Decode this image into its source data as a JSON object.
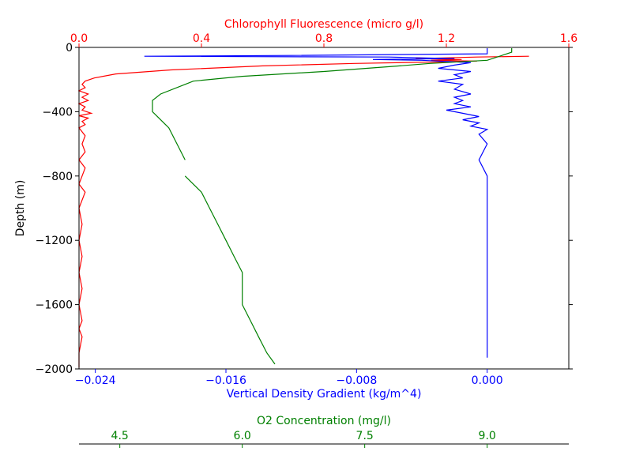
{
  "chart_data": {
    "type": "line",
    "y_axis": {
      "label": "Depth (m)",
      "ylim": [
        -2000,
        0
      ],
      "ticks": [
        0,
        -400,
        -800,
        -1200,
        -1600,
        -2000
      ],
      "tick_labels": [
        "0",
        "−400",
        "−800",
        "−1200",
        "−1600",
        "−2000"
      ]
    },
    "axes": {
      "chlorophyll": {
        "label": "Chlorophyll Fluorescence (micro g/l)",
        "position": "top",
        "color": "#ff0000",
        "xlim": [
          0,
          1.6
        ],
        "ticks": [
          0,
          0.4,
          0.8,
          1.2,
          1.6
        ],
        "tick_labels": [
          "0.0",
          "0.4",
          "0.8",
          "1.2",
          "1.6"
        ]
      },
      "density": {
        "label": "Vertical Density Gradient (kg/m^4)",
        "position": "bottom",
        "color": "#0000ff",
        "xlim": [
          -0.025,
          0.005
        ],
        "ticks": [
          -0.024,
          -0.016,
          -0.008,
          0.0
        ],
        "tick_labels": [
          "−0.024",
          "−0.016",
          "−0.008",
          "0.000"
        ]
      },
      "o2": {
        "label": "O2 Concentration (mg/l)",
        "position": "bottom-offset",
        "color": "#008000",
        "xlim": [
          4.0,
          10.0
        ],
        "ticks": [
          4.5,
          6.0,
          7.5,
          9.0
        ],
        "tick_labels": [
          "4.5",
          "6.0",
          "7.5",
          "9.0"
        ]
      }
    },
    "series": [
      {
        "axis": "chlorophyll",
        "color": "#ff0000",
        "points": [
          [
            1.47,
            -55
          ],
          [
            1.3,
            -60
          ],
          [
            1.1,
            -70
          ],
          [
            1.25,
            -75
          ],
          [
            1.15,
            -80
          ],
          [
            1.3,
            -85
          ],
          [
            1.2,
            -90
          ],
          [
            0.9,
            -100
          ],
          [
            0.6,
            -115
          ],
          [
            0.3,
            -140
          ],
          [
            0.12,
            -165
          ],
          [
            0.05,
            -190
          ],
          [
            0.02,
            -210
          ],
          [
            0.01,
            -230
          ],
          [
            0.02,
            -250
          ],
          [
            0.0,
            -270
          ],
          [
            0.03,
            -290
          ],
          [
            0.01,
            -310
          ],
          [
            0.03,
            -330
          ],
          [
            0.0,
            -350
          ],
          [
            0.02,
            -370
          ],
          [
            0.01,
            -390
          ],
          [
            0.04,
            -410
          ],
          [
            0.0,
            -425
          ],
          [
            0.03,
            -440
          ],
          [
            0.01,
            -460
          ],
          [
            0.02,
            -480
          ],
          [
            0.0,
            -500
          ],
          [
            0.02,
            -550
          ],
          [
            0.01,
            -600
          ],
          [
            0.02,
            -650
          ],
          [
            0.0,
            -700
          ],
          [
            0.02,
            -750
          ],
          [
            0.01,
            -800
          ],
          [
            0.0,
            -850
          ],
          [
            0.02,
            -900
          ],
          [
            0.01,
            -950
          ],
          [
            0.0,
            -1000
          ],
          [
            0.01,
            -1100
          ],
          [
            0.0,
            -1200
          ],
          [
            0.01,
            -1300
          ],
          [
            0.0,
            -1400
          ],
          [
            0.01,
            -1500
          ],
          [
            0.0,
            -1600
          ],
          [
            0.01,
            -1700
          ],
          [
            0.0,
            -1750
          ],
          [
            0.01,
            -1800
          ],
          [
            0.0,
            -1900
          ],
          [
            0.0,
            -1990
          ]
        ]
      },
      {
        "axis": "density",
        "color": "#0000ff",
        "points": [
          [
            0.0,
            -5
          ],
          [
            0.0,
            -40
          ],
          [
            -0.012,
            -50
          ],
          [
            -0.021,
            -55
          ],
          [
            -0.006,
            -60
          ],
          [
            -0.002,
            -70
          ],
          [
            -0.007,
            -75
          ],
          [
            -0.004,
            -80
          ],
          [
            -0.003,
            -85
          ],
          [
            -0.001,
            -95
          ],
          [
            -0.002,
            -110
          ],
          [
            -0.003,
            -130
          ],
          [
            -0.001,
            -150
          ],
          [
            -0.002,
            -170
          ],
          [
            -0.0015,
            -190
          ],
          [
            -0.003,
            -210
          ],
          [
            -0.0015,
            -230
          ],
          [
            -0.002,
            -260
          ],
          [
            -0.001,
            -290
          ],
          [
            -0.002,
            -310
          ],
          [
            -0.0015,
            -330
          ],
          [
            -0.002,
            -350
          ],
          [
            -0.001,
            -370
          ],
          [
            -0.0025,
            -390
          ],
          [
            -0.0015,
            -410
          ],
          [
            -0.0005,
            -430
          ],
          [
            -0.0015,
            -450
          ],
          [
            -0.0005,
            -470
          ],
          [
            -0.001,
            -490
          ],
          [
            0.0,
            -510
          ],
          [
            -0.0005,
            -540
          ],
          [
            0.0,
            -600
          ],
          [
            -0.0005,
            -700
          ],
          [
            0.0,
            -800
          ],
          [
            0.0,
            -1000
          ],
          [
            0.0,
            -1200
          ],
          [
            0.0,
            -1500
          ],
          [
            0.0,
            -1800
          ],
          [
            0.0,
            -1930
          ]
        ]
      },
      {
        "axis": "o2",
        "color": "#008000",
        "segments": [
          [
            [
              9.3,
              -5
            ],
            [
              9.3,
              -30
            ],
            [
              9.0,
              -80
            ],
            [
              8.3,
              -100
            ],
            [
              7.8,
              -120
            ],
            [
              7.0,
              -150
            ],
            [
              6.0,
              -180
            ],
            [
              5.4,
              -210
            ],
            [
              5.3,
              -230
            ],
            [
              5.0,
              -290
            ],
            [
              4.9,
              -330
            ],
            [
              4.9,
              -400
            ],
            [
              5.0,
              -450
            ],
            [
              5.1,
              -500
            ],
            [
              5.2,
              -600
            ],
            [
              5.3,
              -700
            ]
          ],
          [
            [
              5.3,
              -800
            ],
            [
              5.5,
              -900
            ],
            [
              5.6,
              -1000
            ],
            [
              5.7,
              -1100
            ],
            [
              5.8,
              -1200
            ],
            [
              5.9,
              -1300
            ],
            [
              6.0,
              -1400
            ],
            [
              6.0,
              -1600
            ],
            [
              6.1,
              -1700
            ],
            [
              6.2,
              -1800
            ],
            [
              6.3,
              -1900
            ],
            [
              6.4,
              -1970
            ]
          ]
        ]
      }
    ]
  }
}
